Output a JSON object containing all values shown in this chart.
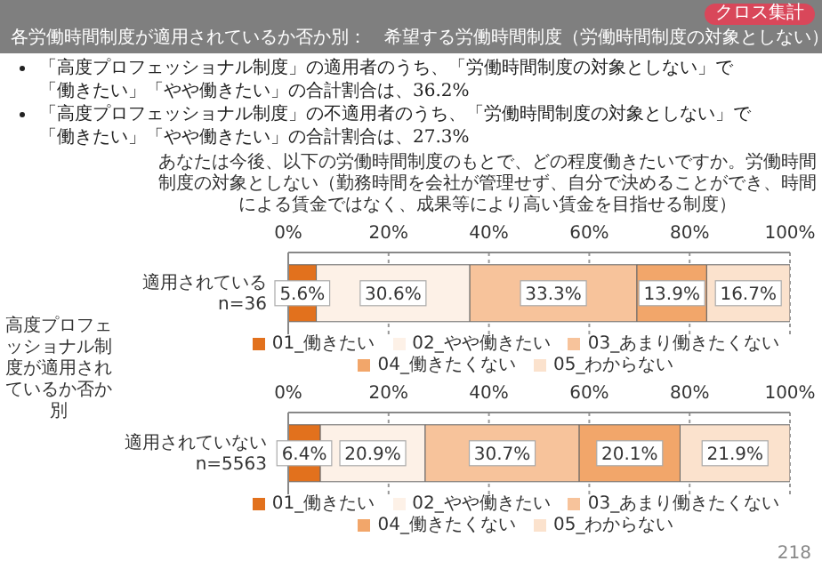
{
  "chart_data": [
    {
      "type": "bar",
      "title": "各労働時間制度が適用されているか否か別：　希望する労働時間制度（労働時間制度の対象としない）",
      "subtitle": "あなたは今後、以下の労働時間制度のもとで、どの程度働きたいですか。労働時間制度の対象としない（勤務時間を会社が管理せず、自分で決めることができ、時間による賃金ではなく、成果等により高い賃金を目指せる制度）",
      "annotations": [
        "クロス集計",
        "「高度プロフェッショナル制度」の適用者のうち、「労働時間制度の対象としない」で「働きたい」「やや働きたい」の合計割合は、36.2%",
        "「高度プロフェッショナル制度」の不適用者のうち、「労働時間制度の対象としない」で「働きたい」「やや働きたい」の合計割合は、27.3%"
      ],
      "ylabel": "高度プロフェッショナル制度が適用されているか否か別",
      "orientation": "horizontal",
      "stacked": true,
      "grid": "x",
      "legend": "bottom",
      "categories": [
        "適用されている\nn=36"
      ],
      "xlim": [
        0,
        100
      ],
      "xticks": [
        {
          "value": 0,
          "label": "0%"
        },
        {
          "value": 20,
          "label": "20%"
        },
        {
          "value": 40,
          "label": "40%"
        },
        {
          "value": 60,
          "label": "60%"
        },
        {
          "value": 80,
          "label": "80%"
        },
        {
          "value": 100,
          "label": "100%"
        }
      ],
      "series": [
        {
          "name": "01_働きたい",
          "color": "#e2711d",
          "values": [
            5.6
          ],
          "value_labels": [
            "5.6%"
          ]
        },
        {
          "name": "02_やや働きたい",
          "color": "#fdf1e7",
          "values": [
            30.6
          ],
          "value_labels": [
            "30.6%"
          ]
        },
        {
          "name": "03_あまり働きたくない",
          "color": "#f7c39b",
          "values": [
            33.3
          ],
          "value_labels": [
            "33.3%"
          ]
        },
        {
          "name": "04_働きたくない",
          "color": "#f2a66a",
          "values": [
            13.9
          ],
          "value_labels": [
            "13.9%"
          ]
        },
        {
          "name": "05_わからない",
          "color": "#fbe2cd",
          "values": [
            16.7
          ],
          "value_labels": [
            "16.7%"
          ]
        }
      ]
    },
    {
      "type": "bar",
      "annotations": [
        "218"
      ],
      "orientation": "horizontal",
      "stacked": true,
      "grid": "x",
      "legend": "bottom",
      "categories": [
        "適用されていない\nn=5563"
      ],
      "xlim": [
        0,
        100
      ],
      "xticks": [
        {
          "value": 0,
          "label": "0%"
        },
        {
          "value": 20,
          "label": "20%"
        },
        {
          "value": 40,
          "label": "40%"
        },
        {
          "value": 60,
          "label": "60%"
        },
        {
          "value": 80,
          "label": "80%"
        },
        {
          "value": 100,
          "label": "100%"
        }
      ],
      "series": [
        {
          "name": "01_働きたい",
          "color": "#e2711d",
          "values": [
            6.4
          ],
          "value_labels": [
            "6.4%"
          ]
        },
        {
          "name": "02_やや働きたい",
          "color": "#fdf1e7",
          "values": [
            20.9
          ],
          "value_labels": [
            "20.9%"
          ]
        },
        {
          "name": "03_あまり働きたくない",
          "color": "#f7c39b",
          "values": [
            30.7
          ],
          "value_labels": [
            "30.7%"
          ]
        },
        {
          "name": "04_働きたくない",
          "color": "#f2a66a",
          "values": [
            20.1
          ],
          "value_labels": [
            "20.1%"
          ]
        },
        {
          "name": "05_わからない",
          "color": "#fbe2cd",
          "values": [
            21.9
          ],
          "value_labels": [
            "21.9%"
          ]
        }
      ]
    }
  ]
}
